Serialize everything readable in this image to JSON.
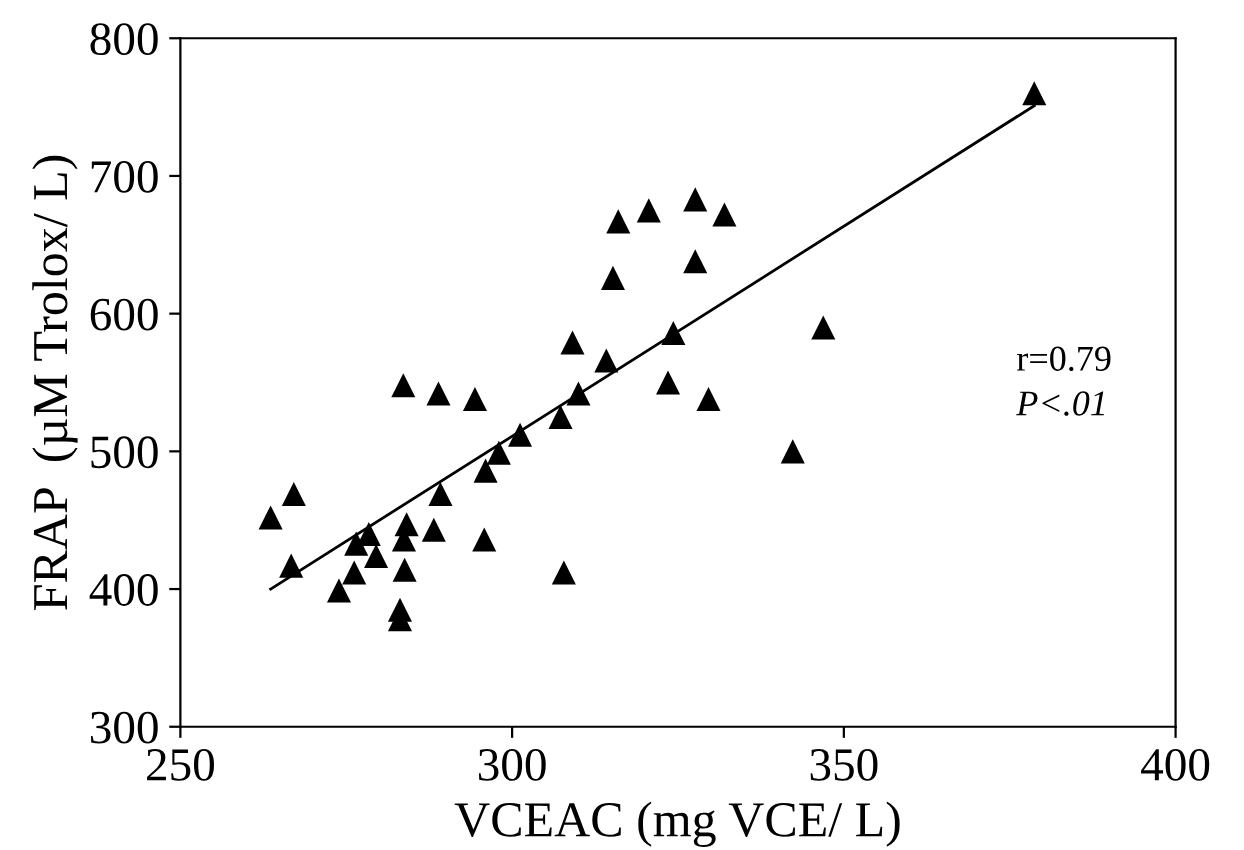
{
  "chart_data": {
    "type": "scatter",
    "xlabel": "VCEAC (mg VCE/ L)",
    "ylabel": "FRAP  (µM Trolox/ L)",
    "xlim": [
      250,
      400
    ],
    "xticks": [
      250,
      300,
      350,
      400
    ],
    "ylim": [
      300,
      800
    ],
    "yticks": [
      300,
      400,
      500,
      600,
      700,
      800
    ],
    "marker": "triangle",
    "grid": false,
    "legend": false,
    "annotations": [
      "r=0.79",
      "P<.01"
    ],
    "series": [
      {
        "color": "#000000",
        "x": [
          263.6,
          267.1,
          266.7,
          273.9,
          276.2,
          276.5,
          278.4,
          279.5,
          283.1,
          283.1,
          283.6,
          283.7,
          284.1,
          283.8,
          288.2,
          288.9,
          289.2,
          294.4,
          296.0,
          295.8,
          298.0,
          301.2,
          307.3,
          307.8,
          309.1,
          310.0,
          314.2,
          315.2,
          316.0,
          320.6,
          323.5,
          324.3,
          327.6,
          327.6,
          329.6,
          332.0,
          342.3,
          346.9,
          378.7
        ],
        "values": [
          452,
          469,
          417,
          399,
          412,
          433,
          440,
          424,
          385,
          378,
          548,
          436,
          447,
          414,
          443,
          542,
          469,
          538,
          486,
          436,
          499,
          512,
          525,
          412,
          579,
          542,
          566,
          626,
          667,
          675,
          550,
          586,
          683,
          638,
          538,
          672,
          500,
          590,
          760
        ]
      },
      {
        "type": "line",
        "color": "#000000",
        "marker": "none",
        "x": [
          263.6,
          378.7
        ],
        "values": [
          400,
          751
        ]
      }
    ]
  }
}
